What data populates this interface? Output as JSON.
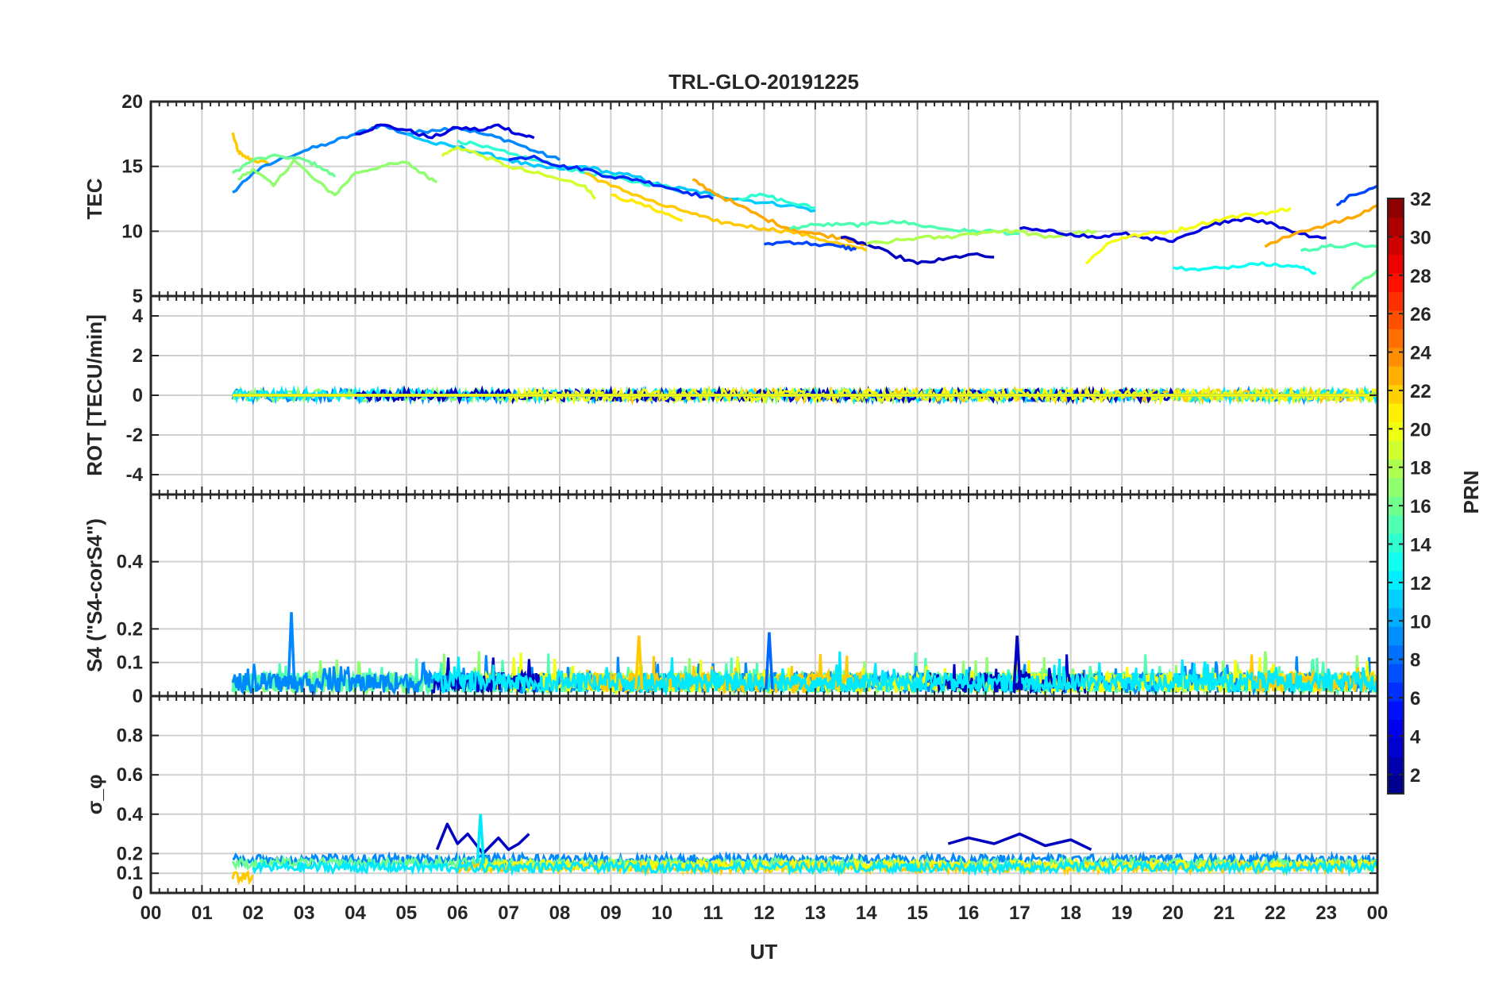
{
  "chart_data": {
    "title": "TRL-GLO-20191225",
    "xlabel": "UT",
    "xlim": [
      0,
      24
    ],
    "xticks": [
      "00",
      "01",
      "02",
      "03",
      "04",
      "05",
      "06",
      "07",
      "08",
      "09",
      "10",
      "11",
      "12",
      "13",
      "14",
      "15",
      "16",
      "17",
      "18",
      "19",
      "20",
      "21",
      "22",
      "23",
      "00"
    ],
    "colorbar": {
      "label": "PRN",
      "range": [
        1,
        32
      ],
      "ticks": [
        "2",
        "4",
        "6",
        "8",
        "10",
        "12",
        "14",
        "16",
        "18",
        "20",
        "22",
        "24",
        "26",
        "28",
        "30",
        "32"
      ],
      "colormap": "jet"
    },
    "panels": [
      {
        "name": "tec",
        "type": "line",
        "ylabel": "TEC",
        "ylim": [
          5,
          20
        ],
        "yticks": [
          "5",
          "10",
          "15",
          "20"
        ],
        "series": [
          {
            "prn": 22,
            "x": [
              1.6,
              1.7,
              1.8,
              2.0,
              2.3
            ],
            "y": [
              17.6,
              16.2,
              15.8,
              15.5,
              15.2
            ]
          },
          {
            "prn": 9,
            "x": [
              1.6,
              2.0,
              2.5,
              3.0,
              3.5,
              4.0,
              4.5,
              5.0,
              5.5,
              6.0,
              6.5,
              7.0,
              7.5,
              8.0
            ],
            "y": [
              13.0,
              14.5,
              15.5,
              16.2,
              16.8,
              17.5,
              18.2,
              17.5,
              17.8,
              18.0,
              17.5,
              17.0,
              16.2,
              15.5
            ]
          },
          {
            "prn": 16,
            "x": [
              1.6,
              2.0,
              2.5,
              3.0,
              3.3,
              3.6
            ],
            "y": [
              14.5,
              15.5,
              15.8,
              15.5,
              15.0,
              14.2
            ]
          },
          {
            "prn": 17,
            "x": [
              1.7,
              2.0,
              2.4,
              2.8,
              3.2,
              3.6,
              4.0,
              4.5,
              5.0,
              5.3,
              5.6
            ],
            "y": [
              14.0,
              14.8,
              13.5,
              15.5,
              14.0,
              12.8,
              14.5,
              15.0,
              15.3,
              14.5,
              13.8
            ]
          },
          {
            "prn": 4,
            "x": [
              4.0,
              4.5,
              5.0,
              5.5,
              6.0,
              6.5,
              6.8,
              7.2,
              7.5
            ],
            "y": [
              17.5,
              18.2,
              17.8,
              17.2,
              18.0,
              17.8,
              18.2,
              17.5,
              17.2
            ]
          },
          {
            "prn": 11,
            "x": [
              5.0,
              5.5,
              6.0,
              6.5,
              7.0,
              7.5,
              8.0,
              8.5,
              9.0,
              9.5,
              10.0,
              10.5,
              11.0,
              11.5,
              12.0,
              12.5,
              13.0
            ],
            "y": [
              17.5,
              16.8,
              16.5,
              16.0,
              15.5,
              15.0,
              14.8,
              15.0,
              14.5,
              14.2,
              13.5,
              13.2,
              12.8,
              12.5,
              12.2,
              12.0,
              11.6
            ]
          },
          {
            "prn": 19,
            "x": [
              5.7,
              6.0,
              6.5,
              7.0,
              7.5,
              8.0,
              8.5,
              8.7
            ],
            "y": [
              15.8,
              16.5,
              15.8,
              15.0,
              14.5,
              14.0,
              13.5,
              12.5
            ]
          },
          {
            "prn": 14,
            "x": [
              6.0,
              6.5,
              7.0,
              7.5,
              8.0,
              8.5,
              9.0,
              9.5,
              10.0,
              10.5
            ],
            "y": [
              17.0,
              16.5,
              16.0,
              15.5,
              15.0,
              14.5,
              14.2,
              13.8,
              13.5,
              13.0
            ]
          },
          {
            "prn": 6,
            "x": [
              7.0,
              7.5,
              8.0,
              8.5,
              9.0,
              9.5,
              10.0,
              10.5,
              11.0
            ],
            "y": [
              15.5,
              15.8,
              15.0,
              14.8,
              14.2,
              14.0,
              13.5,
              13.0,
              12.5
            ]
          },
          {
            "prn": 21,
            "x": [
              9.0,
              9.5,
              10.0,
              10.4
            ],
            "y": [
              12.8,
              12.2,
              11.5,
              10.8
            ]
          },
          {
            "prn": 22,
            "x": [
              8.5,
              9.0,
              9.5,
              10.0,
              10.5,
              11.0,
              11.5,
              12.0,
              12.5,
              13.0,
              13.5,
              14.0
            ],
            "y": [
              14.5,
              13.5,
              12.8,
              12.0,
              11.5,
              10.8,
              10.5,
              10.2,
              10.0,
              9.5,
              9.0,
              8.5
            ]
          },
          {
            "prn": 23,
            "x": [
              10.6,
              11.0,
              11.5,
              12.0,
              12.5,
              13.0,
              13.5,
              14.0
            ],
            "y": [
              14.0,
              13.0,
              12.0,
              11.0,
              10.2,
              9.8,
              9.5,
              9.0
            ]
          },
          {
            "prn": 14,
            "x": [
              11.5,
              12.0,
              12.5,
              13.0
            ],
            "y": [
              12.5,
              12.8,
              12.2,
              11.8
            ]
          },
          {
            "prn": 7,
            "x": [
              12.0,
              12.5,
              13.0,
              13.5,
              13.8
            ],
            "y": [
              9.0,
              9.2,
              9.0,
              8.8,
              8.6
            ]
          },
          {
            "prn": 15,
            "x": [
              12.5,
              13.0,
              13.5,
              14.0,
              14.5,
              15.0,
              15.5,
              16.0,
              16.5,
              17.0
            ],
            "y": [
              10.2,
              10.5,
              10.5,
              10.5,
              10.8,
              10.5,
              10.2,
              10.0,
              10.0,
              9.8
            ]
          },
          {
            "prn": 3,
            "x": [
              13.5,
              14.0,
              14.5,
              15.0,
              15.5,
              16.0,
              16.5
            ],
            "y": [
              9.5,
              9.0,
              8.2,
              7.5,
              7.8,
              8.2,
              8.0
            ]
          },
          {
            "prn": 18,
            "x": [
              14.0,
              14.5,
              15.0,
              15.5,
              16.0,
              16.5,
              17.0,
              17.5,
              18.0,
              18.5
            ],
            "y": [
              9.0,
              9.2,
              9.5,
              9.5,
              9.8,
              10.0,
              10.0,
              9.5,
              9.8,
              10.0
            ]
          },
          {
            "prn": 4,
            "x": [
              17.0,
              17.5,
              18.0,
              18.5,
              19.0,
              19.5,
              20.0,
              20.5,
              21.0,
              21.5,
              22.0,
              22.5,
              23.0
            ],
            "y": [
              10.2,
              10.0,
              9.8,
              9.5,
              9.8,
              9.5,
              9.2,
              10.0,
              10.8,
              11.0,
              10.5,
              9.8,
              9.5
            ]
          },
          {
            "prn": 20,
            "x": [
              18.3,
              18.7,
              19.0,
              19.5,
              20.0,
              20.5,
              21.0,
              21.5,
              22.0,
              22.3
            ],
            "y": [
              7.5,
              9.0,
              9.5,
              9.8,
              10.0,
              10.5,
              11.0,
              11.3,
              11.5,
              11.8
            ]
          },
          {
            "prn": 13,
            "x": [
              20.0,
              20.5,
              21.0,
              21.5,
              22.0,
              22.5,
              22.8
            ],
            "y": [
              7.2,
              7.0,
              7.2,
              7.5,
              7.5,
              7.2,
              6.8
            ]
          },
          {
            "prn": 15,
            "x": [
              22.5,
              23.0,
              23.5,
              24.0
            ],
            "y": [
              8.5,
              8.8,
              9.0,
              8.8
            ]
          },
          {
            "prn": 23,
            "x": [
              21.8,
              22.5,
              23.0,
              23.5,
              24.0
            ],
            "y": [
              8.8,
              10.0,
              10.5,
              11.0,
              12.0
            ]
          },
          {
            "prn": 7,
            "x": [
              23.2,
              23.5,
              24.0
            ],
            "y": [
              12.0,
              12.8,
              13.5
            ]
          },
          {
            "prn": 16,
            "x": [
              23.5,
              24.0
            ],
            "y": [
              5.5,
              7.0
            ]
          }
        ]
      },
      {
        "name": "rot",
        "type": "line",
        "ylabel": "ROT [TECU/min]",
        "ylim": [
          -5,
          5
        ],
        "yticks": [
          "-4",
          "-2",
          "0",
          "2",
          "4"
        ],
        "series": [
          {
            "prn": 9,
            "x": [
              1.6,
              24.0
            ],
            "y": [
              0,
              0
            ]
          },
          {
            "prn": 17,
            "x": [
              1.6,
              24.0
            ],
            "y": [
              0,
              0
            ]
          },
          {
            "prn": 22,
            "x": [
              1.6,
              24.0
            ],
            "y": [
              0,
              0
            ]
          },
          {
            "prn": 12,
            "x": [
              1.6,
              24.0
            ],
            "y": [
              0,
              0
            ]
          },
          {
            "prn": 3,
            "x": [
              1.6,
              24.0
            ],
            "y": [
              0,
              0
            ]
          },
          {
            "prn": 20,
            "x": [
              1.6,
              24.0
            ],
            "y": [
              0,
              0
            ]
          }
        ]
      },
      {
        "name": "s4",
        "type": "line",
        "ylabel": "S4 (\"S4-corS4\")",
        "ylim": [
          0,
          0.6
        ],
        "yticks": [
          "0",
          "0.1",
          "0.2",
          "0.4"
        ],
        "series": [
          {
            "prn": 9,
            "x": [
              2.75
            ],
            "y": [
              0.25
            ]
          },
          {
            "prn": 8,
            "x": [
              12.1
            ],
            "y": [
              0.19
            ]
          },
          {
            "prn": 22,
            "x": [
              9.55
            ],
            "y": [
              0.18
            ]
          },
          {
            "prn": 3,
            "x": [
              16.95
            ],
            "y": [
              0.18
            ]
          }
        ]
      },
      {
        "name": "sigma_phi",
        "type": "line",
        "ylabel": "σ_φ",
        "ylim": [
          0,
          1
        ],
        "yticks": [
          "0",
          "0.1",
          "0.2",
          "0.4",
          "0.6",
          "0.8"
        ],
        "series": [
          {
            "prn": 3,
            "x": [
              5.6,
              5.8,
              6.0,
              6.2,
              6.5,
              6.8,
              7.0,
              7.2,
              7.4
            ],
            "y": [
              0.22,
              0.35,
              0.25,
              0.3,
              0.2,
              0.28,
              0.22,
              0.25,
              0.3
            ]
          },
          {
            "prn": 12,
            "x": [
              6.45
            ],
            "y": [
              0.4
            ]
          },
          {
            "prn": 3,
            "x": [
              15.6,
              16.0,
              16.5,
              17.0,
              17.5,
              18.0,
              18.4
            ],
            "y": [
              0.25,
              0.28,
              0.25,
              0.3,
              0.24,
              0.27,
              0.22
            ]
          }
        ]
      }
    ]
  }
}
